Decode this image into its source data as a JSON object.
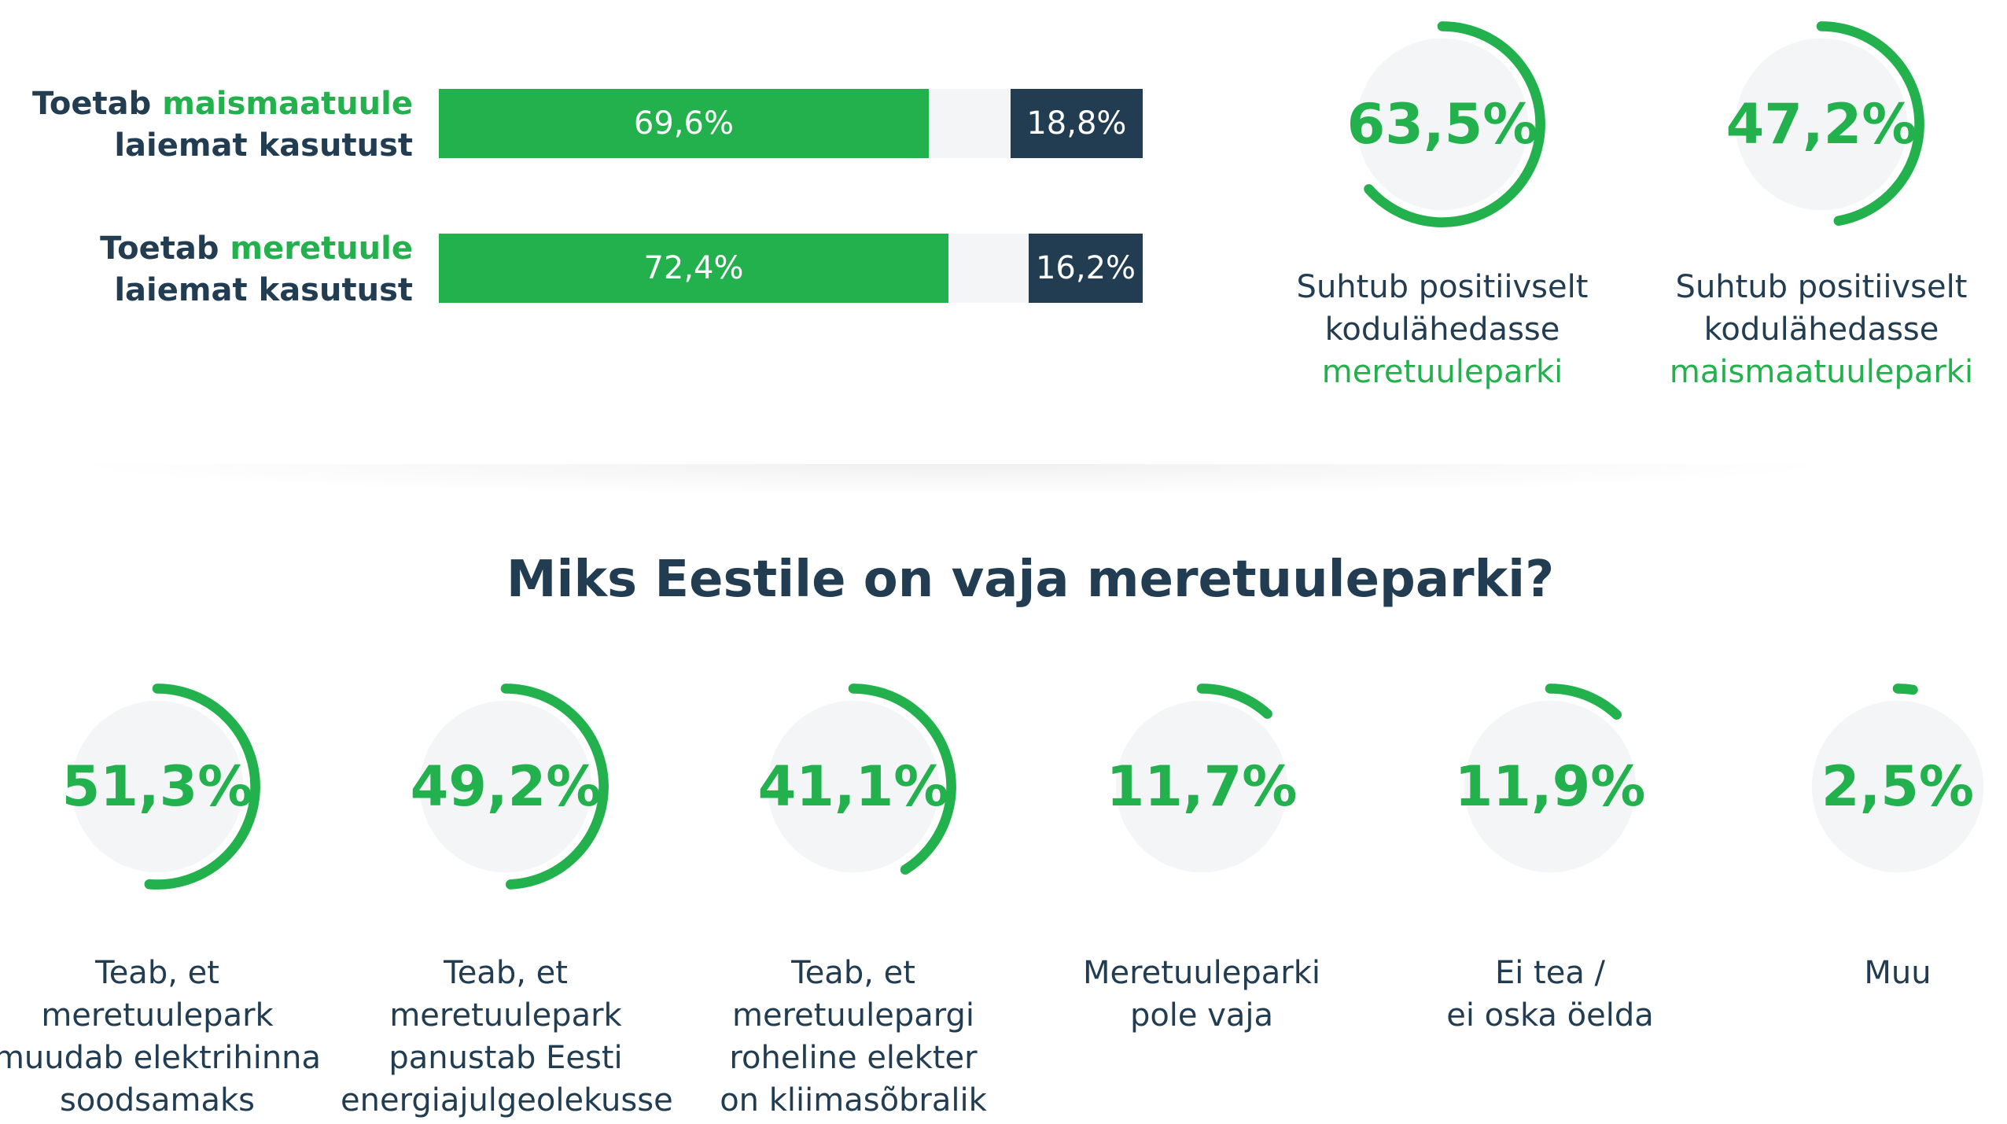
{
  "colors": {
    "accent": "#22b14c",
    "dark": "#223c52",
    "track": "#f3f5f7"
  },
  "bars": [
    {
      "label_pre": "Toetab ",
      "label_hl": "maismaatuule",
      "label_post": "laiemat kasutust",
      "support": 69.6,
      "support_label": "69,6%",
      "oppose": 18.8,
      "oppose_label": "18,8%"
    },
    {
      "label_pre": "Toetab ",
      "label_hl": "meretuule",
      "label_post": "laiemat kasutust",
      "support": 72.4,
      "support_label": "72,4%",
      "oppose": 16.2,
      "oppose_label": "16,2%"
    }
  ],
  "attitude": [
    {
      "value": 63.5,
      "label": "63,5%",
      "caption_pre": "Suhtub positiivselt\nkodulähedasse",
      "caption_hl": "meretuuleparki"
    },
    {
      "value": 47.2,
      "label": "47,2%",
      "caption_pre": "Suhtub positiivselt\nkodulähedasse",
      "caption_hl": "maismaatuuleparki"
    }
  ],
  "section_title": "Miks Eestile on vaja meretuuleparki?",
  "reasons": [
    {
      "value": 51.3,
      "label": "51,3%",
      "caption": "Teab, et\nmeretuulepark\nmuudab elektrihinna\nsoodsamaks"
    },
    {
      "value": 49.2,
      "label": "49,2%",
      "caption": "Teab, et\nmeretuulepark\npanustab Eesti\nenergiajulgeolekusse"
    },
    {
      "value": 41.1,
      "label": "41,1%",
      "caption": "Teab, et\nmeretuulepargi\nroheline elekter\non kliimasõbralik"
    },
    {
      "value": 11.7,
      "label": "11,7%",
      "caption": "Meretuuleparki\npole vaja"
    },
    {
      "value": 11.9,
      "label": "11,9%",
      "caption": "Ei tea /\nei oska öelda"
    },
    {
      "value": 2.5,
      "label": "2,5%",
      "caption": "Muu"
    }
  ],
  "chart_data": [
    {
      "type": "bar",
      "orientation": "horizontal-stacked",
      "categories": [
        "Toetab maismaatuule laiemat kasutust",
        "Toetab meretuule laiemat kasutust"
      ],
      "series": [
        {
          "values": [
            69.6,
            72.4
          ]
        },
        {
          "values": [
            18.8,
            16.2
          ]
        }
      ]
    },
    {
      "type": "pie",
      "style": "donut-gauge",
      "categories": [
        "Suhtub positiivselt kodulähedasse meretuuleparki",
        "Suhtub positiivselt kodulähedasse maismaatuuleparki"
      ],
      "values": [
        63.5,
        47.2
      ]
    },
    {
      "type": "pie",
      "style": "donut-gauge",
      "title": "Miks Eestile on vaja meretuuleparki?",
      "categories": [
        "Teab, et meretuulepark muudab elektrihinna soodsamaks",
        "Teab, et meretuulepark panustab Eesti energiajulgeolekusse",
        "Teab, et meretuulepargi roheline elekter on kliimasõbralik",
        "Meretuuleparki pole vaja",
        "Ei tea / ei oska öelda",
        "Muu"
      ],
      "values": [
        51.3,
        49.2,
        41.1,
        11.7,
        11.9,
        2.5
      ]
    }
  ]
}
